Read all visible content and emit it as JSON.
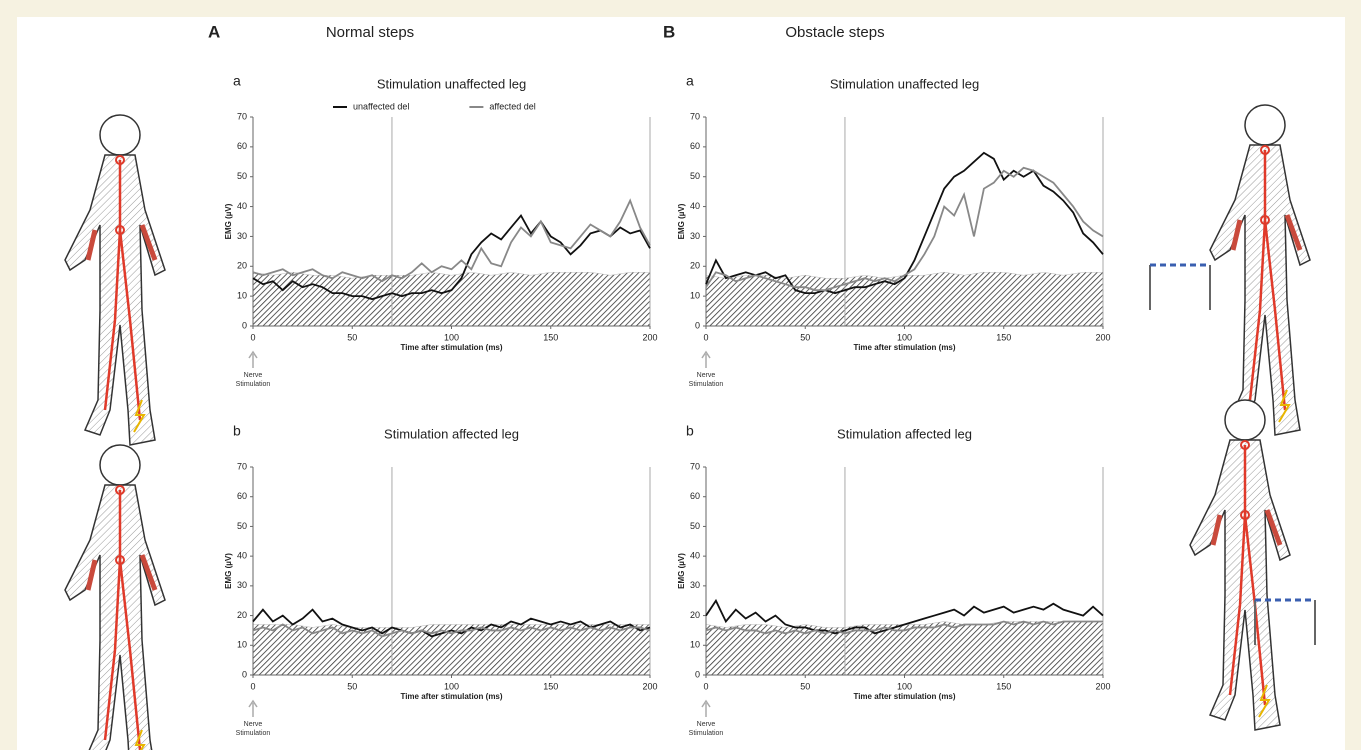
{
  "panels": [
    {
      "label": "A",
      "heading": "Normal steps"
    },
    {
      "label": "B",
      "heading": "Obstacle steps"
    }
  ],
  "chart_data": [
    {
      "type": "line",
      "panel": "a",
      "title": "Stimulation unaffected leg",
      "xlabel": "Time after stimulation (ms)",
      "ylabel": "EMG (µV)",
      "annotation": "Nerve Stimulation",
      "x": [
        0,
        5,
        10,
        15,
        20,
        25,
        30,
        35,
        40,
        45,
        50,
        55,
        60,
        65,
        70,
        75,
        80,
        85,
        90,
        95,
        100,
        105,
        110,
        115,
        120,
        125,
        130,
        135,
        140,
        145,
        150,
        155,
        160,
        165,
        170,
        175,
        180,
        185,
        190,
        195,
        200
      ],
      "xlim": [
        0,
        200
      ],
      "xticks": [
        0,
        50,
        100,
        150,
        200
      ],
      "ylim": [
        0,
        70
      ],
      "yticks": [
        0,
        10,
        20,
        30,
        40,
        50,
        60,
        70
      ],
      "vlines": [
        70,
        200
      ],
      "series": [
        {
          "name": "unaffected del",
          "color": "#111111",
          "values": [
            16,
            14,
            15,
            12,
            15,
            13,
            14,
            13,
            11,
            11,
            10,
            10,
            9,
            10,
            11,
            10,
            11,
            11,
            12,
            11,
            12,
            16,
            24,
            28,
            31,
            29,
            33,
            37,
            31,
            35,
            30,
            28,
            24,
            27,
            31,
            32,
            30,
            33,
            31,
            32,
            26
          ]
        },
        {
          "name": "affected del",
          "color": "#888888",
          "values": [
            18,
            17,
            18,
            19,
            17,
            18,
            19,
            17,
            16,
            18,
            17,
            16,
            17,
            15,
            17,
            16,
            18,
            21,
            18,
            20,
            19,
            22,
            19,
            26,
            21,
            20,
            28,
            33,
            30,
            35,
            28,
            27,
            26,
            30,
            34,
            32,
            30,
            35,
            42,
            33,
            27
          ]
        }
      ],
      "area": {
        "x": [
          0,
          10,
          20,
          30,
          40,
          50,
          60,
          70,
          80,
          90,
          100,
          110,
          120,
          130,
          140,
          150,
          160,
          170,
          180,
          190,
          200
        ],
        "values": [
          18,
          17,
          18,
          17,
          17,
          16,
          17,
          17,
          17,
          18,
          17,
          18,
          17,
          18,
          17,
          18,
          18,
          18,
          17,
          18,
          18
        ]
      }
    },
    {
      "type": "line",
      "panel": "b",
      "title": "Stimulation affected leg",
      "xlabel": "Time after stimulation (ms)",
      "ylabel": "EMG (µV)",
      "annotation": "Nerve Stimulation",
      "x": [
        0,
        5,
        10,
        15,
        20,
        25,
        30,
        35,
        40,
        45,
        50,
        55,
        60,
        65,
        70,
        75,
        80,
        85,
        90,
        95,
        100,
        105,
        110,
        115,
        120,
        125,
        130,
        135,
        140,
        145,
        150,
        155,
        160,
        165,
        170,
        175,
        180,
        185,
        190,
        195,
        200
      ],
      "xlim": [
        0,
        200
      ],
      "xticks": [
        0,
        50,
        100,
        150,
        200
      ],
      "ylim": [
        0,
        70
      ],
      "yticks": [
        0,
        10,
        20,
        30,
        40,
        50,
        60,
        70
      ],
      "vlines": [
        70,
        200
      ],
      "series": [
        {
          "color": "#111111",
          "values": [
            18,
            22,
            18,
            20,
            17,
            19,
            22,
            18,
            19,
            17,
            16,
            15,
            16,
            14,
            16,
            15,
            14,
            15,
            13,
            14,
            15,
            14,
            16,
            15,
            17,
            16,
            18,
            17,
            19,
            18,
            17,
            18,
            17,
            18,
            16,
            17,
            18,
            16,
            17,
            15,
            16
          ]
        },
        {
          "color": "#888888",
          "values": [
            15,
            16,
            15,
            17,
            15,
            16,
            14,
            15,
            16,
            14,
            15,
            14,
            15,
            13,
            14,
            15,
            14,
            15,
            14,
            15,
            14,
            15,
            15,
            16,
            15,
            15,
            16,
            15,
            16,
            15,
            16,
            15,
            16,
            15,
            16,
            15,
            16,
            15,
            16,
            16,
            15
          ]
        }
      ],
      "area": {
        "x": [
          0,
          10,
          20,
          30,
          40,
          50,
          60,
          70,
          80,
          90,
          100,
          110,
          120,
          130,
          140,
          150,
          160,
          170,
          180,
          190,
          200
        ],
        "values": [
          17,
          17,
          17,
          16,
          17,
          16,
          16,
          16,
          16,
          17,
          17,
          17,
          17,
          17,
          17,
          17,
          17,
          17,
          17,
          17,
          17
        ]
      }
    },
    {
      "type": "line",
      "panel": "a",
      "title": "Stimulation unaffected leg",
      "xlabel": "Time after stimulation (ms)",
      "ylabel": "EMG (µV)",
      "annotation": "Nerve Stimulation",
      "x": [
        0,
        5,
        10,
        15,
        20,
        25,
        30,
        35,
        40,
        45,
        50,
        55,
        60,
        65,
        70,
        75,
        80,
        85,
        90,
        95,
        100,
        105,
        110,
        115,
        120,
        125,
        130,
        135,
        140,
        145,
        150,
        155,
        160,
        165,
        170,
        175,
        180,
        185,
        190,
        195,
        200
      ],
      "xlim": [
        0,
        200
      ],
      "xticks": [
        0,
        50,
        100,
        150,
        200
      ],
      "ylim": [
        0,
        70
      ],
      "yticks": [
        0,
        10,
        20,
        30,
        40,
        50,
        60,
        70
      ],
      "vlines": [
        70,
        200
      ],
      "series": [
        {
          "color": "#111111",
          "values": [
            14,
            22,
            16,
            17,
            18,
            17,
            18,
            16,
            17,
            12,
            11,
            11,
            12,
            11,
            12,
            13,
            13,
            14,
            15,
            14,
            16,
            22,
            30,
            38,
            46,
            50,
            52,
            55,
            58,
            56,
            49,
            52,
            50,
            52,
            47,
            45,
            42,
            38,
            31,
            28,
            24
          ]
        },
        {
          "color": "#888888",
          "values": [
            13,
            18,
            17,
            15,
            16,
            17,
            16,
            15,
            14,
            13,
            13,
            12,
            12,
            13,
            14,
            15,
            16,
            15,
            16,
            15,
            17,
            19,
            24,
            30,
            40,
            37,
            44,
            30,
            46,
            48,
            52,
            50,
            53,
            52,
            50,
            48,
            44,
            40,
            35,
            32,
            30
          ]
        }
      ],
      "area": {
        "x": [
          0,
          10,
          20,
          30,
          40,
          50,
          60,
          70,
          80,
          90,
          100,
          110,
          120,
          130,
          140,
          150,
          160,
          170,
          180,
          190,
          200
        ],
        "values": [
          17,
          16,
          17,
          17,
          16,
          17,
          16,
          16,
          17,
          16,
          17,
          17,
          18,
          17,
          18,
          18,
          17,
          18,
          17,
          18,
          18
        ]
      }
    },
    {
      "type": "line",
      "panel": "b",
      "title": "Stimulation affected leg",
      "xlabel": "Time after stimulation (ms)",
      "ylabel": "EMG (µV)",
      "annotation": "Nerve Stimulation",
      "x": [
        0,
        5,
        10,
        15,
        20,
        25,
        30,
        35,
        40,
        45,
        50,
        55,
        60,
        65,
        70,
        75,
        80,
        85,
        90,
        95,
        100,
        105,
        110,
        115,
        120,
        125,
        130,
        135,
        140,
        145,
        150,
        155,
        160,
        165,
        170,
        175,
        180,
        185,
        190,
        195,
        200
      ],
      "xlim": [
        0,
        200
      ],
      "xticks": [
        0,
        50,
        100,
        150,
        200
      ],
      "ylim": [
        0,
        70
      ],
      "yticks": [
        0,
        10,
        20,
        30,
        40,
        50,
        60,
        70
      ],
      "vlines": [
        70,
        200
      ],
      "series": [
        {
          "color": "#111111",
          "values": [
            20,
            25,
            18,
            22,
            19,
            21,
            18,
            20,
            17,
            16,
            16,
            15,
            15,
            14,
            15,
            16,
            16,
            14,
            15,
            16,
            17,
            18,
            19,
            20,
            21,
            22,
            20,
            23,
            21,
            22,
            23,
            21,
            22,
            23,
            22,
            24,
            22,
            21,
            20,
            23,
            20
          ]
        },
        {
          "color": "#888888",
          "values": [
            15,
            16,
            15,
            16,
            15,
            15,
            14,
            15,
            14,
            15,
            14,
            15,
            14,
            15,
            14,
            15,
            15,
            15,
            16,
            15,
            15,
            16,
            16,
            16,
            17,
            16,
            17,
            17,
            17,
            17,
            18,
            17,
            18,
            17,
            18,
            17,
            18,
            18,
            18,
            18,
            18
          ]
        }
      ],
      "area": {
        "x": [
          0,
          10,
          20,
          30,
          40,
          50,
          60,
          70,
          80,
          90,
          100,
          110,
          120,
          130,
          140,
          150,
          160,
          170,
          180,
          190,
          200
        ],
        "values": [
          17,
          16,
          17,
          17,
          16,
          17,
          16,
          16,
          17,
          17,
          17,
          17,
          18,
          17,
          17,
          18,
          18,
          18,
          18,
          18,
          18
        ]
      }
    }
  ]
}
